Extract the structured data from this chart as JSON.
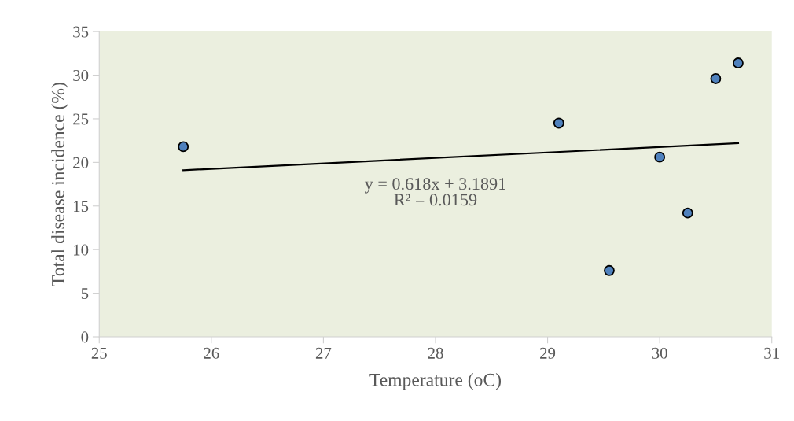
{
  "chart_data": {
    "type": "scatter",
    "xlabel": "Temperature (oC)",
    "ylabel": "Total disease incidence (%)",
    "x": [
      25.75,
      29.1,
      29.55,
      30.0,
      30.25,
      30.5,
      30.7
    ],
    "series": [
      {
        "color": "#4f81bd",
        "marker": "circle",
        "values": [
          21.8,
          24.5,
          7.6,
          20.6,
          14.2,
          29.6,
          31.4
        ]
      },
      {
        "type": "line",
        "color": "#000000",
        "marker": "none",
        "x": [
          25.75,
          30.7
        ],
        "values": [
          19.1,
          22.2
        ]
      }
    ],
    "annotations": [
      "y = 0.618x + 3.1891\nR² = 0.0159"
    ],
    "xlim": [
      25,
      31
    ],
    "xticks": [
      25,
      26,
      27,
      28,
      29,
      30,
      31
    ],
    "ylim": [
      0,
      35
    ],
    "yticks": [
      0,
      5,
      10,
      15,
      20,
      25,
      30,
      35
    ],
    "grid": false
  }
}
